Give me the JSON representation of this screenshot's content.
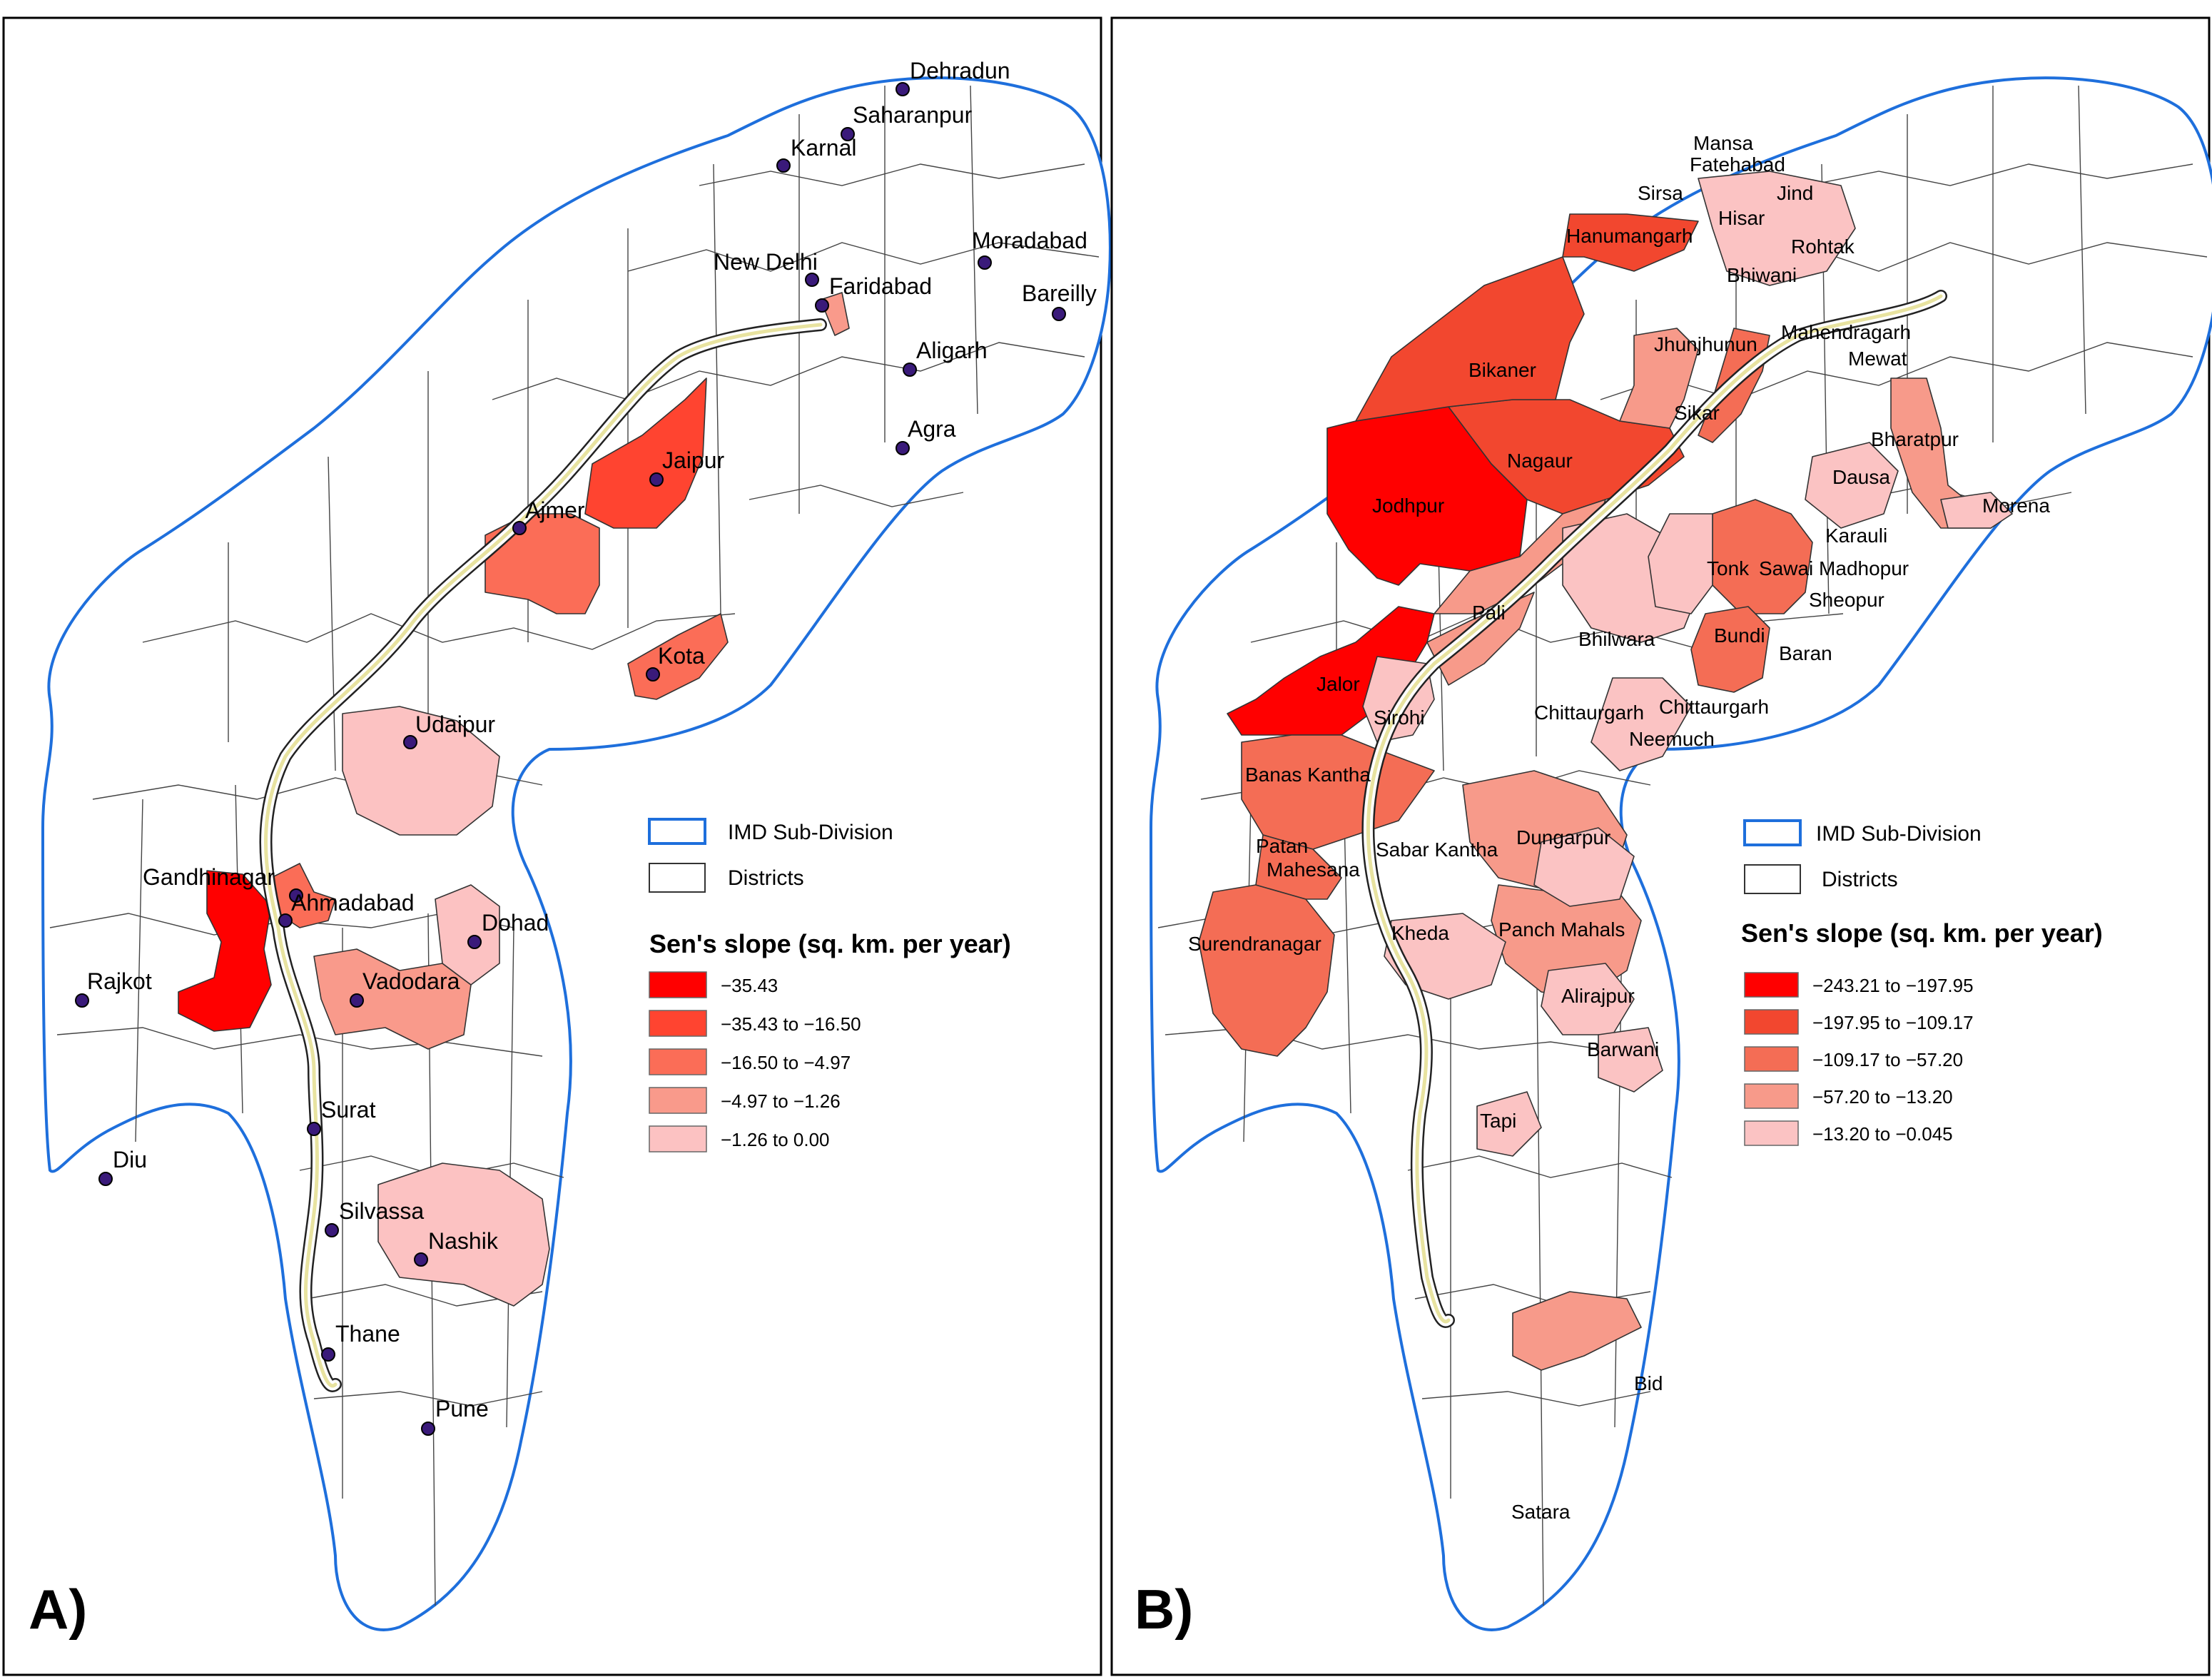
{
  "panels": [
    {
      "label": "A)",
      "legend": {
        "boundary_label": "IMD Sub-Division",
        "districts_label": "Districts",
        "title": "Sen's slope (sq. km. per year)",
        "classes": [
          {
            "label": "−35.43",
            "color": "#ff0000"
          },
          {
            "label": "−35.43 to −16.50",
            "color": "#ff4430"
          },
          {
            "label": "−16.50 to −4.97",
            "color": "#fb6d57"
          },
          {
            "label": "−4.97 to −1.26",
            "color": "#f99a8b"
          },
          {
            "label": "−1.26 to 0.00",
            "color": "#fcc2c2"
          }
        ]
      },
      "cities": [
        "Dehradun",
        "Saharanpur",
        "Karnal",
        "Moradabad",
        "New Delhi",
        "Faridabad",
        "Bareilly",
        "Aligarh",
        "Agra",
        "Jaipur",
        "Ajmer",
        "Kota",
        "Udaipur",
        "Gandhinagar",
        "Ahmadabad",
        "Dohad",
        "Rajkot",
        "Vadodara",
        "Surat",
        "Diu",
        "Silvassa",
        "Nashik",
        "Thane",
        "Pune"
      ]
    },
    {
      "label": "B)",
      "legend": {
        "boundary_label": "IMD Sub-Division",
        "districts_label": "Districts",
        "title": "Sen's slope (sq. km. per year)",
        "classes": [
          {
            "label": "−243.21 to −197.95",
            "color": "#ff0000"
          },
          {
            "label": "−197.95 to −109.17",
            "color": "#f2472f"
          },
          {
            "label": "−109.17 to −57.20",
            "color": "#f46d55"
          },
          {
            "label": "−57.20 to −13.20",
            "color": "#f79a8a"
          },
          {
            "label": "−13.20 to −0.045",
            "color": "#fbc3c3"
          }
        ]
      },
      "districts": [
        "Mansa",
        "Fatehabad",
        "Sirsa",
        "Jind",
        "Hisar",
        "Hanumangarh",
        "Rohtak",
        "Bhiwani",
        "Mahendragarh",
        "Jhunjhunun",
        "Mewat",
        "Bikaner",
        "Sikar",
        "Bharatpur",
        "Nagaur",
        "Dausa",
        "Morena",
        "Jodhpur",
        "Karauli",
        "Tonk",
        "Sawai Madhopur",
        "Sheopur",
        "Pali",
        "Bhilwara",
        "Bundi",
        "Baran",
        "Jalor",
        "Chittaurgarh",
        "Chittaurgarh",
        "Sirohi",
        "Neemuch",
        "Banas Kantha",
        "Sabar Kantha",
        "Dungarpur",
        "Patan",
        "Mahesana",
        "Kheda",
        "Panch Mahals",
        "Surendranagar",
        "Alirajpur",
        "Barwani",
        "Tapi",
        "Bid",
        "Satara"
      ]
    }
  ]
}
